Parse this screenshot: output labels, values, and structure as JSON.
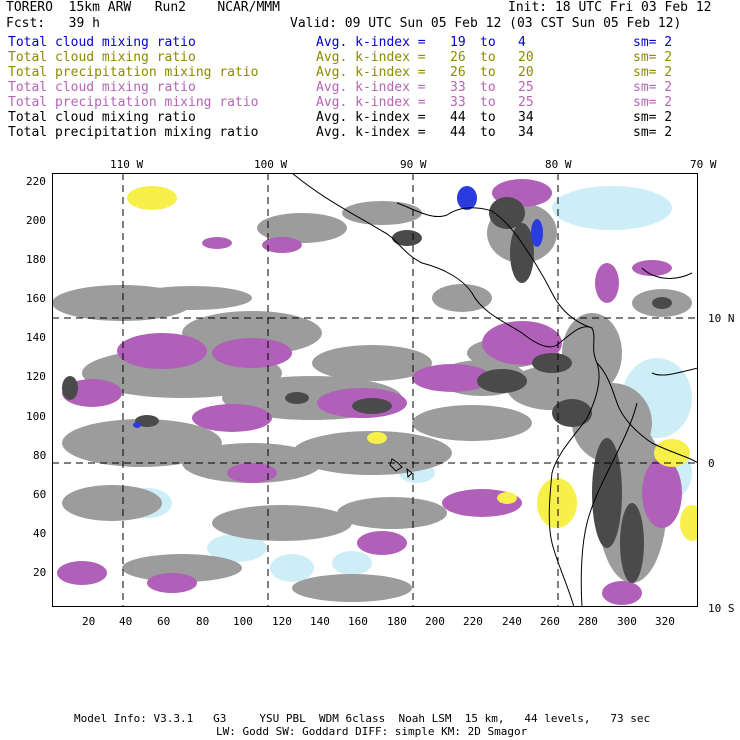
{
  "header": {
    "model": "TORERO  15km ARW   Run2    NCAR/MMM",
    "init": "Init: 18 UTC Fri 03 Feb 12",
    "fcst": "Fcst:   39 h",
    "valid": "Valid: 09 UTC Sun 05 Feb 12 (03 CST Sun 05 Feb 12)"
  },
  "legend": [
    {
      "field": "Total cloud mixing ratio",
      "avg": "Avg. k-index =",
      "k1": "19",
      "to": "to",
      "k2": "4",
      "sm": "sm= 2",
      "color": "#0000cc"
    },
    {
      "field": "Total cloud mixing ratio",
      "avg": "Avg. k-index =",
      "k1": "26",
      "to": "to",
      "k2": "20",
      "sm": "sm= 2",
      "color": "#8b8b00"
    },
    {
      "field": "Total precipitation mixing ratio",
      "avg": "Avg. k-index =",
      "k1": "26",
      "to": "to",
      "k2": "20",
      "sm": "sm= 2",
      "color": "#8b8b00"
    },
    {
      "field": "Total cloud mixing ratio",
      "avg": "Avg. k-index =",
      "k1": "33",
      "to": "to",
      "k2": "25",
      "sm": "sm= 2",
      "color": "#b565b5"
    },
    {
      "field": "Total precipitation mixing ratio",
      "avg": "Avg. k-index =",
      "k1": "33",
      "to": "to",
      "k2": "25",
      "sm": "sm= 2",
      "color": "#b565b5"
    },
    {
      "field": "Total cloud mixing ratio",
      "avg": "Avg. k-index =",
      "k1": "44",
      "to": "to",
      "k2": "34",
      "sm": "sm= 2",
      "color": "#000000"
    },
    {
      "field": "Total precipitation mixing ratio",
      "avg": "Avg. k-index =",
      "k1": "44",
      "to": "to",
      "k2": "34",
      "sm": "sm= 2",
      "color": "#000000"
    }
  ],
  "axes": {
    "top_lon": [
      "110 W",
      "100 W",
      "90 W",
      "80 W",
      "70 W"
    ],
    "right_lat": [
      "10 N",
      "0",
      "10 S"
    ],
    "left_y": [
      "220",
      "200",
      "180",
      "160",
      "140",
      "120",
      "100",
      "80",
      "60",
      "40",
      "20"
    ],
    "bottom_x": [
      "20",
      "40",
      "60",
      "80",
      "100",
      "120",
      "140",
      "160",
      "180",
      "200",
      "220",
      "240",
      "260",
      "280",
      "300",
      "320"
    ]
  },
  "footer": {
    "line1": "Model Info: V3.3.1   G3     YSU PBL  WDM 6class  Noah LSM  15 km,   44 levels,   73 sec",
    "line2": "LW: Godd SW: Goddard DIFF: simple KM: 2D Smagor"
  },
  "colors": {
    "gray": "#9c9c9c",
    "dark": "#4a4a4a",
    "purple": "#b060b8",
    "yellow": "#f7f04a",
    "lightblue": "#cdeef7",
    "blue": "#2a3ce0"
  }
}
